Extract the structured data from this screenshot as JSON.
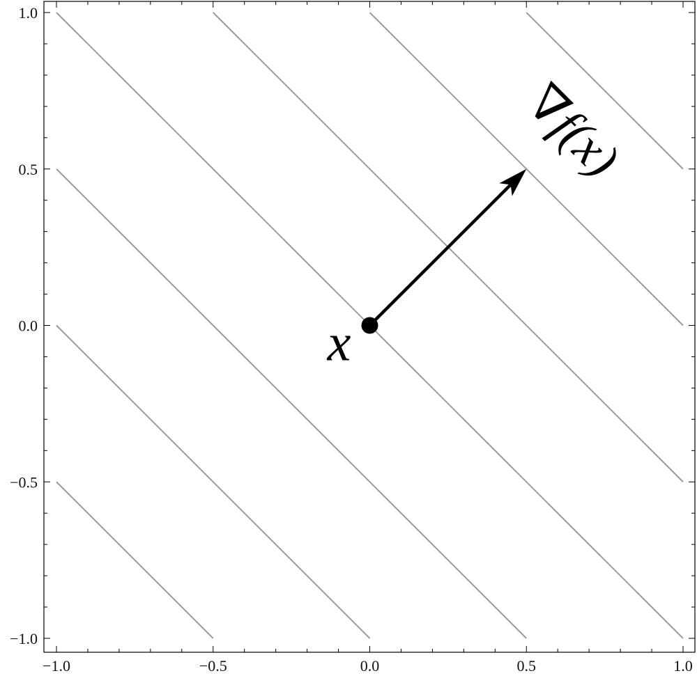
{
  "chart_data": {
    "type": "line",
    "title": "",
    "xlabel": "",
    "ylabel": "",
    "xlim": [
      -1.0,
      1.0
    ],
    "ylim": [
      -1.0,
      1.0
    ],
    "x_ticks": [
      -1.0,
      -0.5,
      0.0,
      0.5,
      1.0
    ],
    "y_ticks": [
      -1.0,
      -0.5,
      0.0,
      0.5,
      1.0
    ],
    "x_tick_labels": [
      "−1.0",
      "−0.5",
      "0.0",
      "0.5",
      "1.0"
    ],
    "y_tick_labels": [
      "−1.0",
      "−0.5",
      "0.0",
      "0.5",
      "1.0"
    ],
    "minor_tick_step": 0.1,
    "grid": false,
    "contour_line_color": "#9a9a9a",
    "contour_levels": [
      -1.5,
      -1.0,
      -0.5,
      0.0,
      0.5,
      1.0,
      1.5
    ],
    "contour_lines": [
      {
        "level": -1.5,
        "points": [
          [
            -1.0,
            -0.5
          ],
          [
            -0.5,
            -1.0
          ]
        ]
      },
      {
        "level": -1.0,
        "points": [
          [
            -1.0,
            0.0
          ],
          [
            0.0,
            -1.0
          ]
        ]
      },
      {
        "level": -0.5,
        "points": [
          [
            -1.0,
            0.5
          ],
          [
            0.5,
            -1.0
          ]
        ]
      },
      {
        "level": 0.0,
        "points": [
          [
            -1.0,
            1.0
          ],
          [
            1.0,
            -1.0
          ]
        ]
      },
      {
        "level": 0.5,
        "points": [
          [
            -0.5,
            1.0
          ],
          [
            1.0,
            -0.5
          ]
        ]
      },
      {
        "level": 1.0,
        "points": [
          [
            0.0,
            1.0
          ],
          [
            1.0,
            0.0
          ]
        ]
      },
      {
        "level": 1.5,
        "points": [
          [
            0.5,
            1.0
          ],
          [
            1.0,
            0.5
          ]
        ]
      }
    ],
    "point": {
      "x": 0.0,
      "y": 0.0,
      "label": "x"
    },
    "vector": {
      "from": [
        0.0,
        0.0
      ],
      "to": [
        0.5,
        0.5
      ],
      "label": "∇f(x)",
      "color": "#000000"
    }
  }
}
